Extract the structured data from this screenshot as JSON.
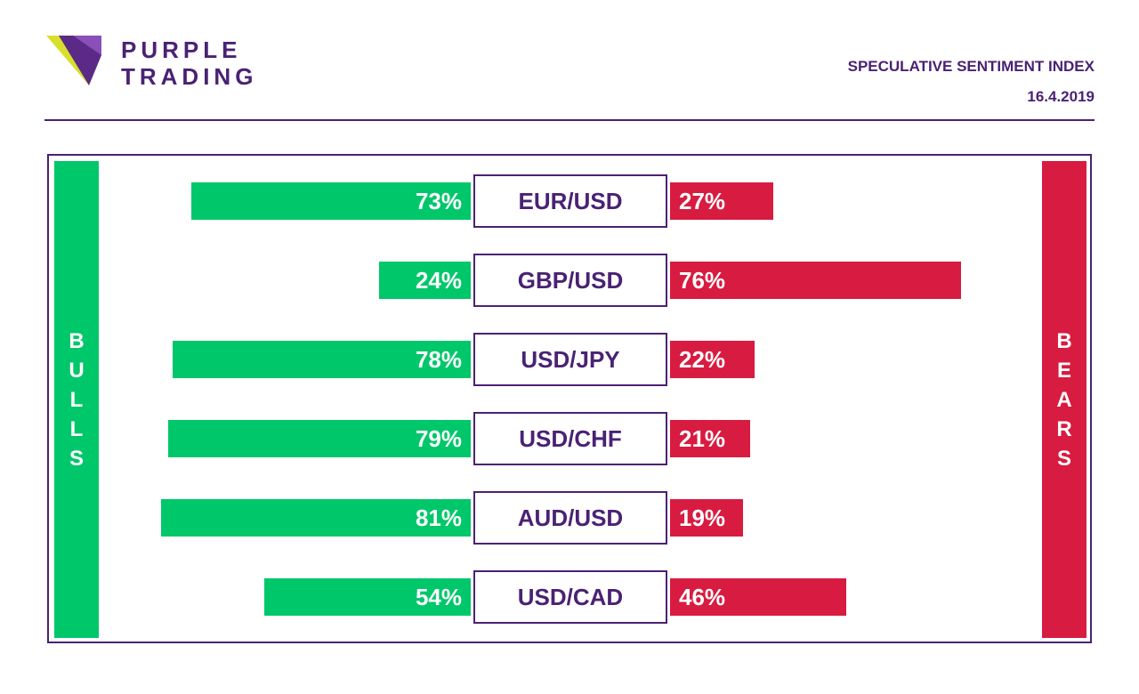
{
  "brand": {
    "line1": "PURPLE",
    "line2": "TRADING",
    "accent": "#4a2274",
    "logo_yellow": "#d7e02a"
  },
  "header": {
    "title": "SPECULATIVE SENTIMENT INDEX",
    "date": "16.4.2019"
  },
  "legend": {
    "bulls": [
      "B",
      "U",
      "L",
      "L",
      "S"
    ],
    "bears": [
      "B",
      "E",
      "A",
      "R",
      "S"
    ]
  },
  "colors": {
    "bulls": "#00c76a",
    "bears": "#d81b40"
  },
  "chart_data": {
    "type": "bar",
    "orientation": "horizontal-diverging",
    "title": "SPECULATIVE SENTIMENT INDEX",
    "categories": [
      "EUR/USD",
      "GBP/USD",
      "USD/JPY",
      "USD/CHF",
      "AUD/USD",
      "USD/CAD"
    ],
    "series": [
      {
        "name": "BULLS",
        "values": [
          73,
          24,
          78,
          79,
          81,
          54
        ],
        "labels": [
          "73%",
          "24%",
          "78%",
          "79%",
          "81%",
          "54%"
        ]
      },
      {
        "name": "BEARS",
        "values": [
          27,
          76,
          22,
          21,
          19,
          46
        ],
        "labels": [
          "27%",
          "76%",
          "22%",
          "21%",
          "19%",
          "46%"
        ]
      }
    ],
    "unit": "%",
    "xlim": [
      0,
      100
    ]
  }
}
